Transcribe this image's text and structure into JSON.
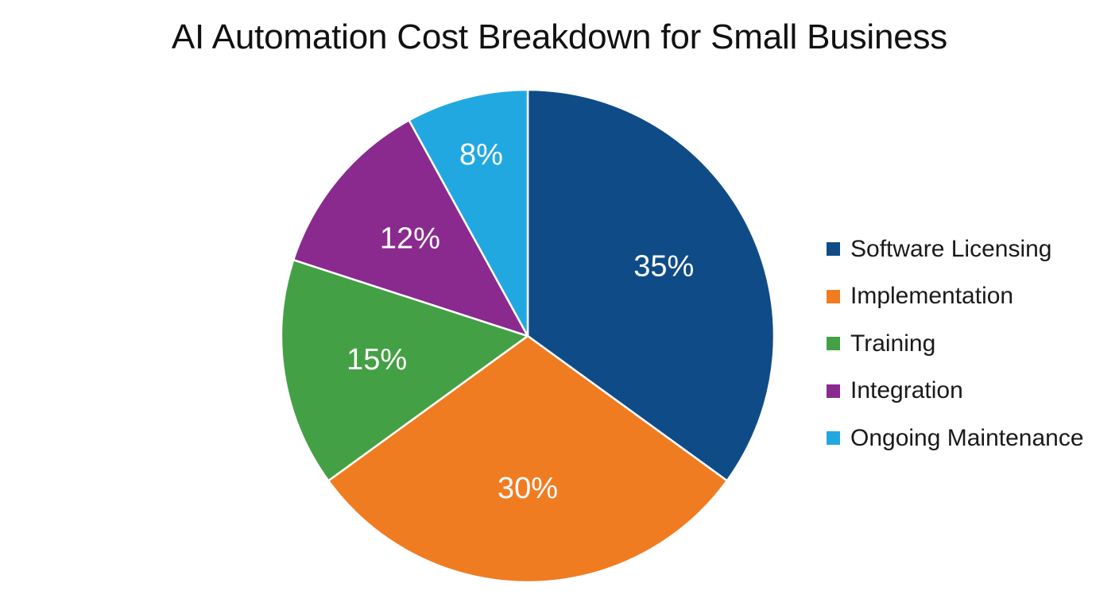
{
  "chart_data": {
    "type": "pie",
    "title": "AI Automation Cost Breakdown for Small Business",
    "legend_position": "right",
    "start_angle_deg": 0,
    "direction": "clockwise",
    "slices": [
      {
        "name": "Software Licensing",
        "value": 35,
        "label": "35%",
        "color": "#0f4c87"
      },
      {
        "name": "Implementation",
        "value": 30,
        "label": "30%",
        "color": "#f07c22"
      },
      {
        "name": "Training",
        "value": 15,
        "label": "15%",
        "color": "#44a045"
      },
      {
        "name": "Integration",
        "value": 12,
        "label": "12%",
        "color": "#8a2a8e"
      },
      {
        "name": "Ongoing Maintenance",
        "value": 8,
        "label": "8%",
        "color": "#22a8e0"
      }
    ]
  }
}
